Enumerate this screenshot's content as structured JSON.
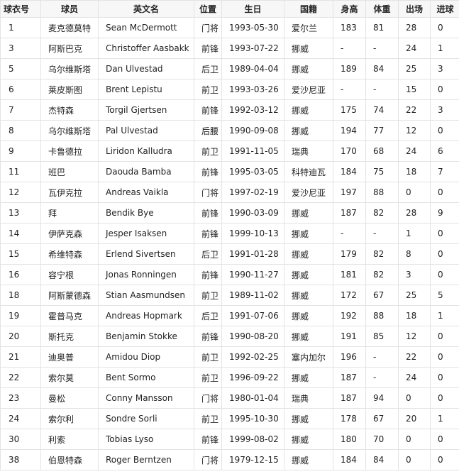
{
  "headers": [
    "球衣号",
    "球员",
    "英文名",
    "位置",
    "生日",
    "国籍",
    "身高",
    "体重",
    "出场",
    "进球"
  ],
  "rows": [
    [
      "1",
      "麦克德莫特",
      "Sean McDermott",
      "门将",
      "1993-05-30",
      "爱尔兰",
      "183",
      "81",
      "28",
      "0"
    ],
    [
      "3",
      "阿斯巴克",
      "Christoffer Aasbakk",
      "前锋",
      "1993-07-22",
      "挪威",
      "-",
      "-",
      "24",
      "1"
    ],
    [
      "5",
      "乌尔维斯塔",
      "Dan Ulvestad",
      "后卫",
      "1989-04-04",
      "挪威",
      "189",
      "84",
      "25",
      "3"
    ],
    [
      "6",
      "莱皮斯图",
      "Brent Lepistu",
      "前卫",
      "1993-03-26",
      "爱沙尼亚",
      "-",
      "-",
      "15",
      "0"
    ],
    [
      "7",
      "杰特森",
      "Torgil Gjertsen",
      "前锋",
      "1992-03-12",
      "挪威",
      "175",
      "74",
      "22",
      "3"
    ],
    [
      "8",
      "乌尔维斯塔",
      "Pal Ulvestad",
      "后腰",
      "1990-09-08",
      "挪威",
      "194",
      "77",
      "12",
      "0"
    ],
    [
      "9",
      "卡鲁德拉",
      "Liridon Kalludra",
      "前卫",
      "1991-11-05",
      "瑞典",
      "170",
      "68",
      "24",
      "6"
    ],
    [
      "11",
      "班巴",
      "Daouda Bamba",
      "前锋",
      "1995-03-05",
      "科特迪瓦",
      "184",
      "75",
      "18",
      "7"
    ],
    [
      "12",
      "瓦伊克拉",
      "Andreas Vaikla",
      "门将",
      "1997-02-19",
      "爱沙尼亚",
      "197",
      "88",
      "0",
      "0"
    ],
    [
      "13",
      "拜",
      "Bendik Bye",
      "前锋",
      "1990-03-09",
      "挪威",
      "187",
      "82",
      "28",
      "9"
    ],
    [
      "14",
      "伊萨克森",
      "Jesper Isaksen",
      "前锋",
      "1999-10-13",
      "挪威",
      "-",
      "-",
      "1",
      "0"
    ],
    [
      "15",
      "希维特森",
      "Erlend Sivertsen",
      "后卫",
      "1991-01-28",
      "挪威",
      "179",
      "82",
      "8",
      "0"
    ],
    [
      "16",
      "容宁根",
      "Jonas Ronningen",
      "前锋",
      "1990-11-27",
      "挪威",
      "181",
      "82",
      "3",
      "0"
    ],
    [
      "18",
      "阿斯蒙德森",
      "Stian Aasmundsen",
      "前卫",
      "1989-11-02",
      "挪威",
      "172",
      "67",
      "25",
      "5"
    ],
    [
      "19",
      "霍普马克",
      "Andreas Hopmark",
      "后卫",
      "1991-07-06",
      "挪威",
      "192",
      "88",
      "18",
      "1"
    ],
    [
      "20",
      "斯托克",
      "Benjamin Stokke",
      "前锋",
      "1990-08-20",
      "挪威",
      "191",
      "85",
      "12",
      "0"
    ],
    [
      "21",
      "迪奥普",
      "Amidou Diop",
      "前卫",
      "1992-02-25",
      "塞内加尔",
      "196",
      "-",
      "22",
      "0"
    ],
    [
      "22",
      "索尔莫",
      "Bent Sormo",
      "前卫",
      "1996-09-22",
      "挪威",
      "187",
      "-",
      "24",
      "0"
    ],
    [
      "23",
      "曼松",
      "Conny Mansson",
      "门将",
      "1980-01-04",
      "瑞典",
      "187",
      "94",
      "0",
      "0"
    ],
    [
      "24",
      "索尔利",
      "Sondre Sorli",
      "前卫",
      "1995-10-30",
      "挪威",
      "178",
      "67",
      "20",
      "1"
    ],
    [
      "30",
      "利索",
      "Tobias Lyso",
      "前锋",
      "1999-08-02",
      "挪威",
      "180",
      "70",
      "0",
      "0"
    ],
    [
      "38",
      "伯恩特森",
      "Roger Berntzen",
      "门将",
      "1979-12-15",
      "挪威",
      "184",
      "84",
      "0",
      "0"
    ]
  ]
}
